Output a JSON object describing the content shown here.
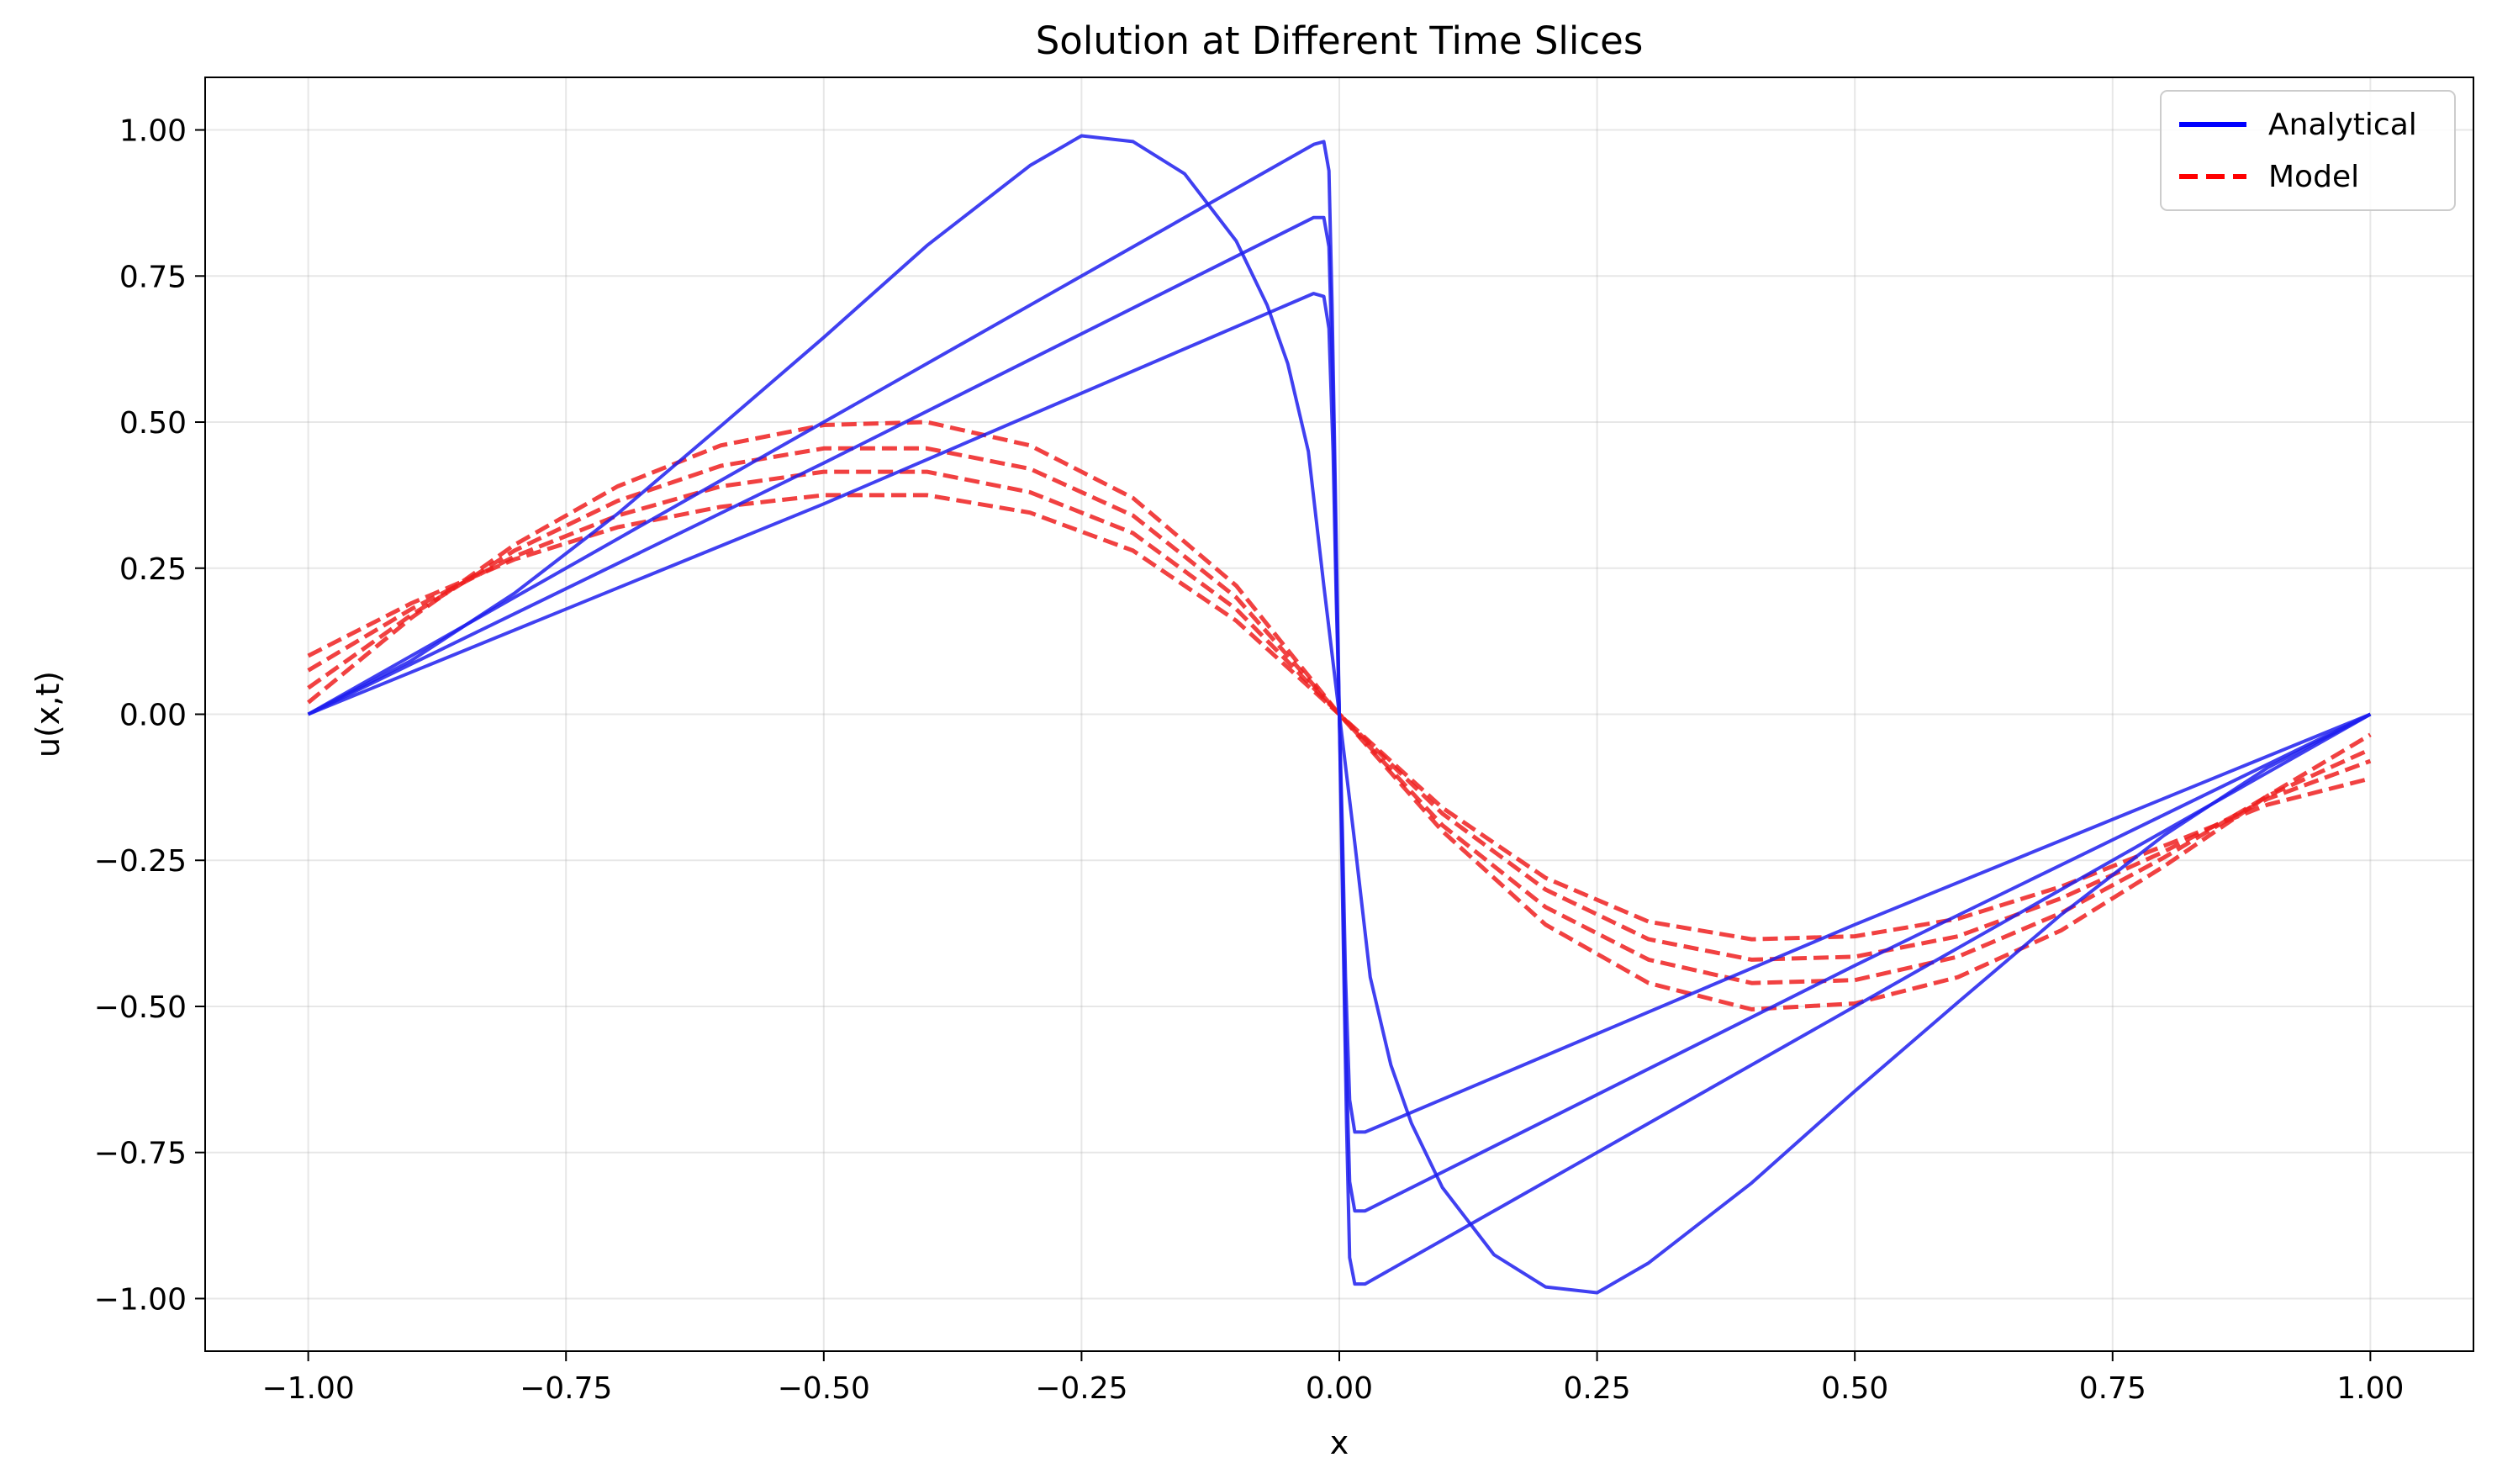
{
  "chart_data": {
    "type": "line",
    "title": "Solution at Different Time Slices",
    "xlabel": "x",
    "ylabel": "u(x,t)",
    "xlim": [
      -1.1,
      1.1
    ],
    "ylim": [
      -1.09,
      1.09
    ],
    "xticks": [
      -1.0,
      -0.75,
      -0.5,
      -0.25,
      0.0,
      0.25,
      0.5,
      0.75,
      1.0
    ],
    "yticks": [
      -1.0,
      -0.75,
      -0.5,
      -0.25,
      0.0,
      0.25,
      0.5,
      0.75,
      1.0
    ],
    "xtick_labels": [
      "−1.00",
      "−0.75",
      "−0.50",
      "−0.25",
      "0.00",
      "0.25",
      "0.50",
      "0.75",
      "1.00"
    ],
    "ytick_labels": [
      "−1.00",
      "−0.75",
      "−0.50",
      "−0.25",
      "0.00",
      "0.25",
      "0.50",
      "0.75",
      "1.00"
    ],
    "grid": true,
    "legend_position": "top-right",
    "colors": {
      "analytical": "#1f1fee",
      "model": "#ee2020"
    },
    "legend": [
      {
        "label": "Analytical",
        "style": "solid",
        "color": "#0000ff"
      },
      {
        "label": "Model",
        "style": "dashed",
        "color": "#ff0000"
      }
    ],
    "series": [
      {
        "group": "analytical",
        "style": "solid",
        "points": [
          [
            -1,
            0
          ],
          [
            -0.9,
            0.092
          ],
          [
            -0.8,
            0.207
          ],
          [
            -0.7,
            0.343
          ],
          [
            -0.6,
            0.493
          ],
          [
            -0.5,
            0.645
          ],
          [
            -0.4,
            0.802
          ],
          [
            -0.3,
            0.939
          ],
          [
            -0.25,
            0.99
          ],
          [
            -0.2,
            0.98
          ],
          [
            -0.15,
            0.925
          ],
          [
            -0.1,
            0.81
          ],
          [
            -0.07,
            0.7
          ],
          [
            -0.05,
            0.6
          ],
          [
            -0.03,
            0.45
          ],
          [
            -0.015,
            0.22
          ],
          [
            0,
            0
          ],
          [
            0.015,
            -0.22
          ],
          [
            0.03,
            -0.45
          ],
          [
            0.05,
            -0.6
          ],
          [
            0.07,
            -0.7
          ],
          [
            0.1,
            -0.81
          ],
          [
            0.15,
            -0.925
          ],
          [
            0.2,
            -0.98
          ],
          [
            0.25,
            -0.99
          ],
          [
            0.3,
            -0.939
          ],
          [
            0.4,
            -0.802
          ],
          [
            0.5,
            -0.645
          ],
          [
            0.6,
            -0.493
          ],
          [
            0.7,
            -0.343
          ],
          [
            0.8,
            -0.207
          ],
          [
            0.9,
            -0.092
          ],
          [
            1,
            0
          ]
        ]
      },
      {
        "group": "analytical",
        "style": "solid",
        "points": [
          [
            -1,
            0
          ],
          [
            -0.5,
            0.5
          ],
          [
            -0.0247,
            0.9753
          ],
          [
            -0.015,
            0.98
          ],
          [
            -0.01,
            0.93
          ],
          [
            -0.007,
            0.7
          ],
          [
            -0.004,
            0.4
          ],
          [
            0,
            0
          ],
          [
            0.004,
            -0.4
          ],
          [
            0.007,
            -0.7
          ],
          [
            0.01,
            -0.93
          ],
          [
            0.015,
            -0.975
          ],
          [
            0.025,
            -0.975
          ],
          [
            0.5,
            -0.5
          ],
          [
            1,
            0
          ]
        ]
      },
      {
        "group": "analytical",
        "style": "solid",
        "points": [
          [
            -1,
            0
          ],
          [
            -0.5,
            0.43
          ],
          [
            -0.025,
            0.85
          ],
          [
            -0.015,
            0.85
          ],
          [
            -0.01,
            0.8
          ],
          [
            -0.006,
            0.55
          ],
          [
            -0.003,
            0.25
          ],
          [
            0,
            0
          ],
          [
            0.003,
            -0.25
          ],
          [
            0.006,
            -0.55
          ],
          [
            0.01,
            -0.8
          ],
          [
            0.015,
            -0.85
          ],
          [
            0.025,
            -0.85
          ],
          [
            0.5,
            -0.43
          ],
          [
            1,
            0
          ]
        ]
      },
      {
        "group": "analytical",
        "style": "solid",
        "points": [
          [
            -1,
            0
          ],
          [
            -0.5,
            0.36
          ],
          [
            -0.025,
            0.72
          ],
          [
            -0.015,
            0.715
          ],
          [
            -0.01,
            0.66
          ],
          [
            -0.006,
            0.45
          ],
          [
            -0.003,
            0.2
          ],
          [
            0,
            0
          ],
          [
            0.003,
            -0.2
          ],
          [
            0.006,
            -0.45
          ],
          [
            0.01,
            -0.66
          ],
          [
            0.015,
            -0.715
          ],
          [
            0.025,
            -0.715
          ],
          [
            0.5,
            -0.36
          ],
          [
            1,
            0
          ]
        ]
      },
      {
        "group": "model",
        "style": "dashed",
        "points": [
          [
            -1,
            0.02
          ],
          [
            -0.9,
            0.165
          ],
          [
            -0.8,
            0.29
          ],
          [
            -0.7,
            0.39
          ],
          [
            -0.6,
            0.46
          ],
          [
            -0.5,
            0.495
          ],
          [
            -0.4,
            0.5
          ],
          [
            -0.3,
            0.46
          ],
          [
            -0.2,
            0.37
          ],
          [
            -0.1,
            0.22
          ],
          [
            0,
            0
          ],
          [
            0.1,
            -0.2
          ],
          [
            0.2,
            -0.36
          ],
          [
            0.3,
            -0.46
          ],
          [
            0.4,
            -0.505
          ],
          [
            0.5,
            -0.495
          ],
          [
            0.6,
            -0.45
          ],
          [
            0.7,
            -0.37
          ],
          [
            0.8,
            -0.26
          ],
          [
            0.9,
            -0.14
          ],
          [
            1,
            -0.035
          ]
        ]
      },
      {
        "group": "model",
        "style": "dashed",
        "points": [
          [
            -1,
            0.045
          ],
          [
            -0.9,
            0.17
          ],
          [
            -0.8,
            0.28
          ],
          [
            -0.7,
            0.365
          ],
          [
            -0.6,
            0.425
          ],
          [
            -0.5,
            0.455
          ],
          [
            -0.4,
            0.455
          ],
          [
            -0.3,
            0.42
          ],
          [
            -0.2,
            0.34
          ],
          [
            -0.1,
            0.2
          ],
          [
            0,
            0
          ],
          [
            0.1,
            -0.19
          ],
          [
            0.2,
            -0.33
          ],
          [
            0.3,
            -0.42
          ],
          [
            0.4,
            -0.46
          ],
          [
            0.5,
            -0.455
          ],
          [
            0.6,
            -0.415
          ],
          [
            0.7,
            -0.34
          ],
          [
            0.8,
            -0.245
          ],
          [
            0.9,
            -0.14
          ],
          [
            1,
            -0.06
          ]
        ]
      },
      {
        "group": "model",
        "style": "dashed",
        "points": [
          [
            -1,
            0.075
          ],
          [
            -0.9,
            0.18
          ],
          [
            -0.8,
            0.27
          ],
          [
            -0.7,
            0.34
          ],
          [
            -0.6,
            0.39
          ],
          [
            -0.5,
            0.415
          ],
          [
            -0.4,
            0.415
          ],
          [
            -0.3,
            0.38
          ],
          [
            -0.2,
            0.31
          ],
          [
            -0.1,
            0.18
          ],
          [
            0,
            0
          ],
          [
            0.1,
            -0.17
          ],
          [
            0.2,
            -0.3
          ],
          [
            0.3,
            -0.385
          ],
          [
            0.4,
            -0.42
          ],
          [
            0.5,
            -0.415
          ],
          [
            0.6,
            -0.38
          ],
          [
            0.7,
            -0.315
          ],
          [
            0.8,
            -0.235
          ],
          [
            0.9,
            -0.145
          ],
          [
            1,
            -0.08
          ]
        ]
      },
      {
        "group": "model",
        "style": "dashed",
        "points": [
          [
            -1,
            0.1
          ],
          [
            -0.9,
            0.19
          ],
          [
            -0.8,
            0.265
          ],
          [
            -0.7,
            0.32
          ],
          [
            -0.6,
            0.355
          ],
          [
            -0.5,
            0.375
          ],
          [
            -0.4,
            0.375
          ],
          [
            -0.3,
            0.345
          ],
          [
            -0.2,
            0.28
          ],
          [
            -0.1,
            0.16
          ],
          [
            0,
            0
          ],
          [
            0.1,
            -0.16
          ],
          [
            0.2,
            -0.28
          ],
          [
            0.3,
            -0.355
          ],
          [
            0.4,
            -0.385
          ],
          [
            0.5,
            -0.38
          ],
          [
            0.6,
            -0.35
          ],
          [
            0.7,
            -0.295
          ],
          [
            0.8,
            -0.225
          ],
          [
            0.9,
            -0.155
          ],
          [
            1,
            -0.11
          ]
        ]
      }
    ]
  }
}
